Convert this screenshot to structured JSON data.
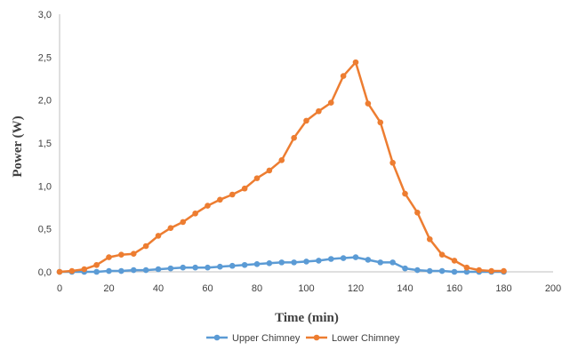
{
  "chart_data": {
    "type": "line",
    "xlabel": "Time (min)",
    "ylabel": "Power  (W)",
    "xlim": [
      0,
      200
    ],
    "ylim": [
      0,
      3
    ],
    "x_ticks": [
      0,
      20,
      40,
      60,
      80,
      100,
      120,
      140,
      160,
      180,
      200
    ],
    "y_ticks": [
      0,
      0.5,
      1,
      1.5,
      2,
      2.5,
      3
    ],
    "x_tick_labels": [
      "0",
      "20",
      "40",
      "60",
      "80",
      "100",
      "120",
      "140",
      "160",
      "180",
      "200"
    ],
    "y_tick_labels": [
      "0,0",
      "0,5",
      "1,0",
      "1,5",
      "2,0",
      "2,5",
      "3,0"
    ],
    "grid": false,
    "legend_position": "bottom",
    "series": [
      {
        "name": "Upper Chimney",
        "color": "#5B9BD5",
        "x": [
          0,
          5,
          10,
          15,
          20,
          25,
          30,
          35,
          40,
          45,
          50,
          55,
          60,
          65,
          70,
          75,
          80,
          85,
          90,
          95,
          100,
          105,
          110,
          115,
          120,
          125,
          130,
          135,
          140,
          145,
          150,
          155,
          160,
          165,
          170,
          175,
          180
        ],
        "y": [
          0,
          0,
          0,
          0,
          0.01,
          0.01,
          0.02,
          0.02,
          0.03,
          0.04,
          0.05,
          0.05,
          0.05,
          0.06,
          0.07,
          0.08,
          0.09,
          0.1,
          0.11,
          0.11,
          0.12,
          0.13,
          0.15,
          0.16,
          0.17,
          0.14,
          0.11,
          0.11,
          0.04,
          0.02,
          0.01,
          0.01,
          0,
          0,
          0,
          0,
          0
        ]
      },
      {
        "name": "Lower Chimney",
        "color": "#ED7D31",
        "x": [
          0,
          5,
          10,
          15,
          20,
          25,
          30,
          35,
          40,
          45,
          50,
          55,
          60,
          65,
          70,
          75,
          80,
          85,
          90,
          95,
          100,
          105,
          110,
          115,
          120,
          125,
          130,
          135,
          140,
          145,
          150,
          155,
          160,
          165,
          170,
          175,
          180
        ],
        "y": [
          0,
          0.01,
          0.03,
          0.08,
          0.17,
          0.2,
          0.21,
          0.3,
          0.42,
          0.51,
          0.58,
          0.68,
          0.77,
          0.84,
          0.9,
          0.97,
          1.09,
          1.18,
          1.3,
          1.56,
          1.76,
          1.87,
          1.97,
          2.28,
          2.44,
          1.96,
          1.74,
          1.27,
          0.91,
          0.69,
          0.38,
          0.2,
          0.13,
          0.05,
          0.02,
          0.01,
          0.01
        ]
      }
    ]
  }
}
